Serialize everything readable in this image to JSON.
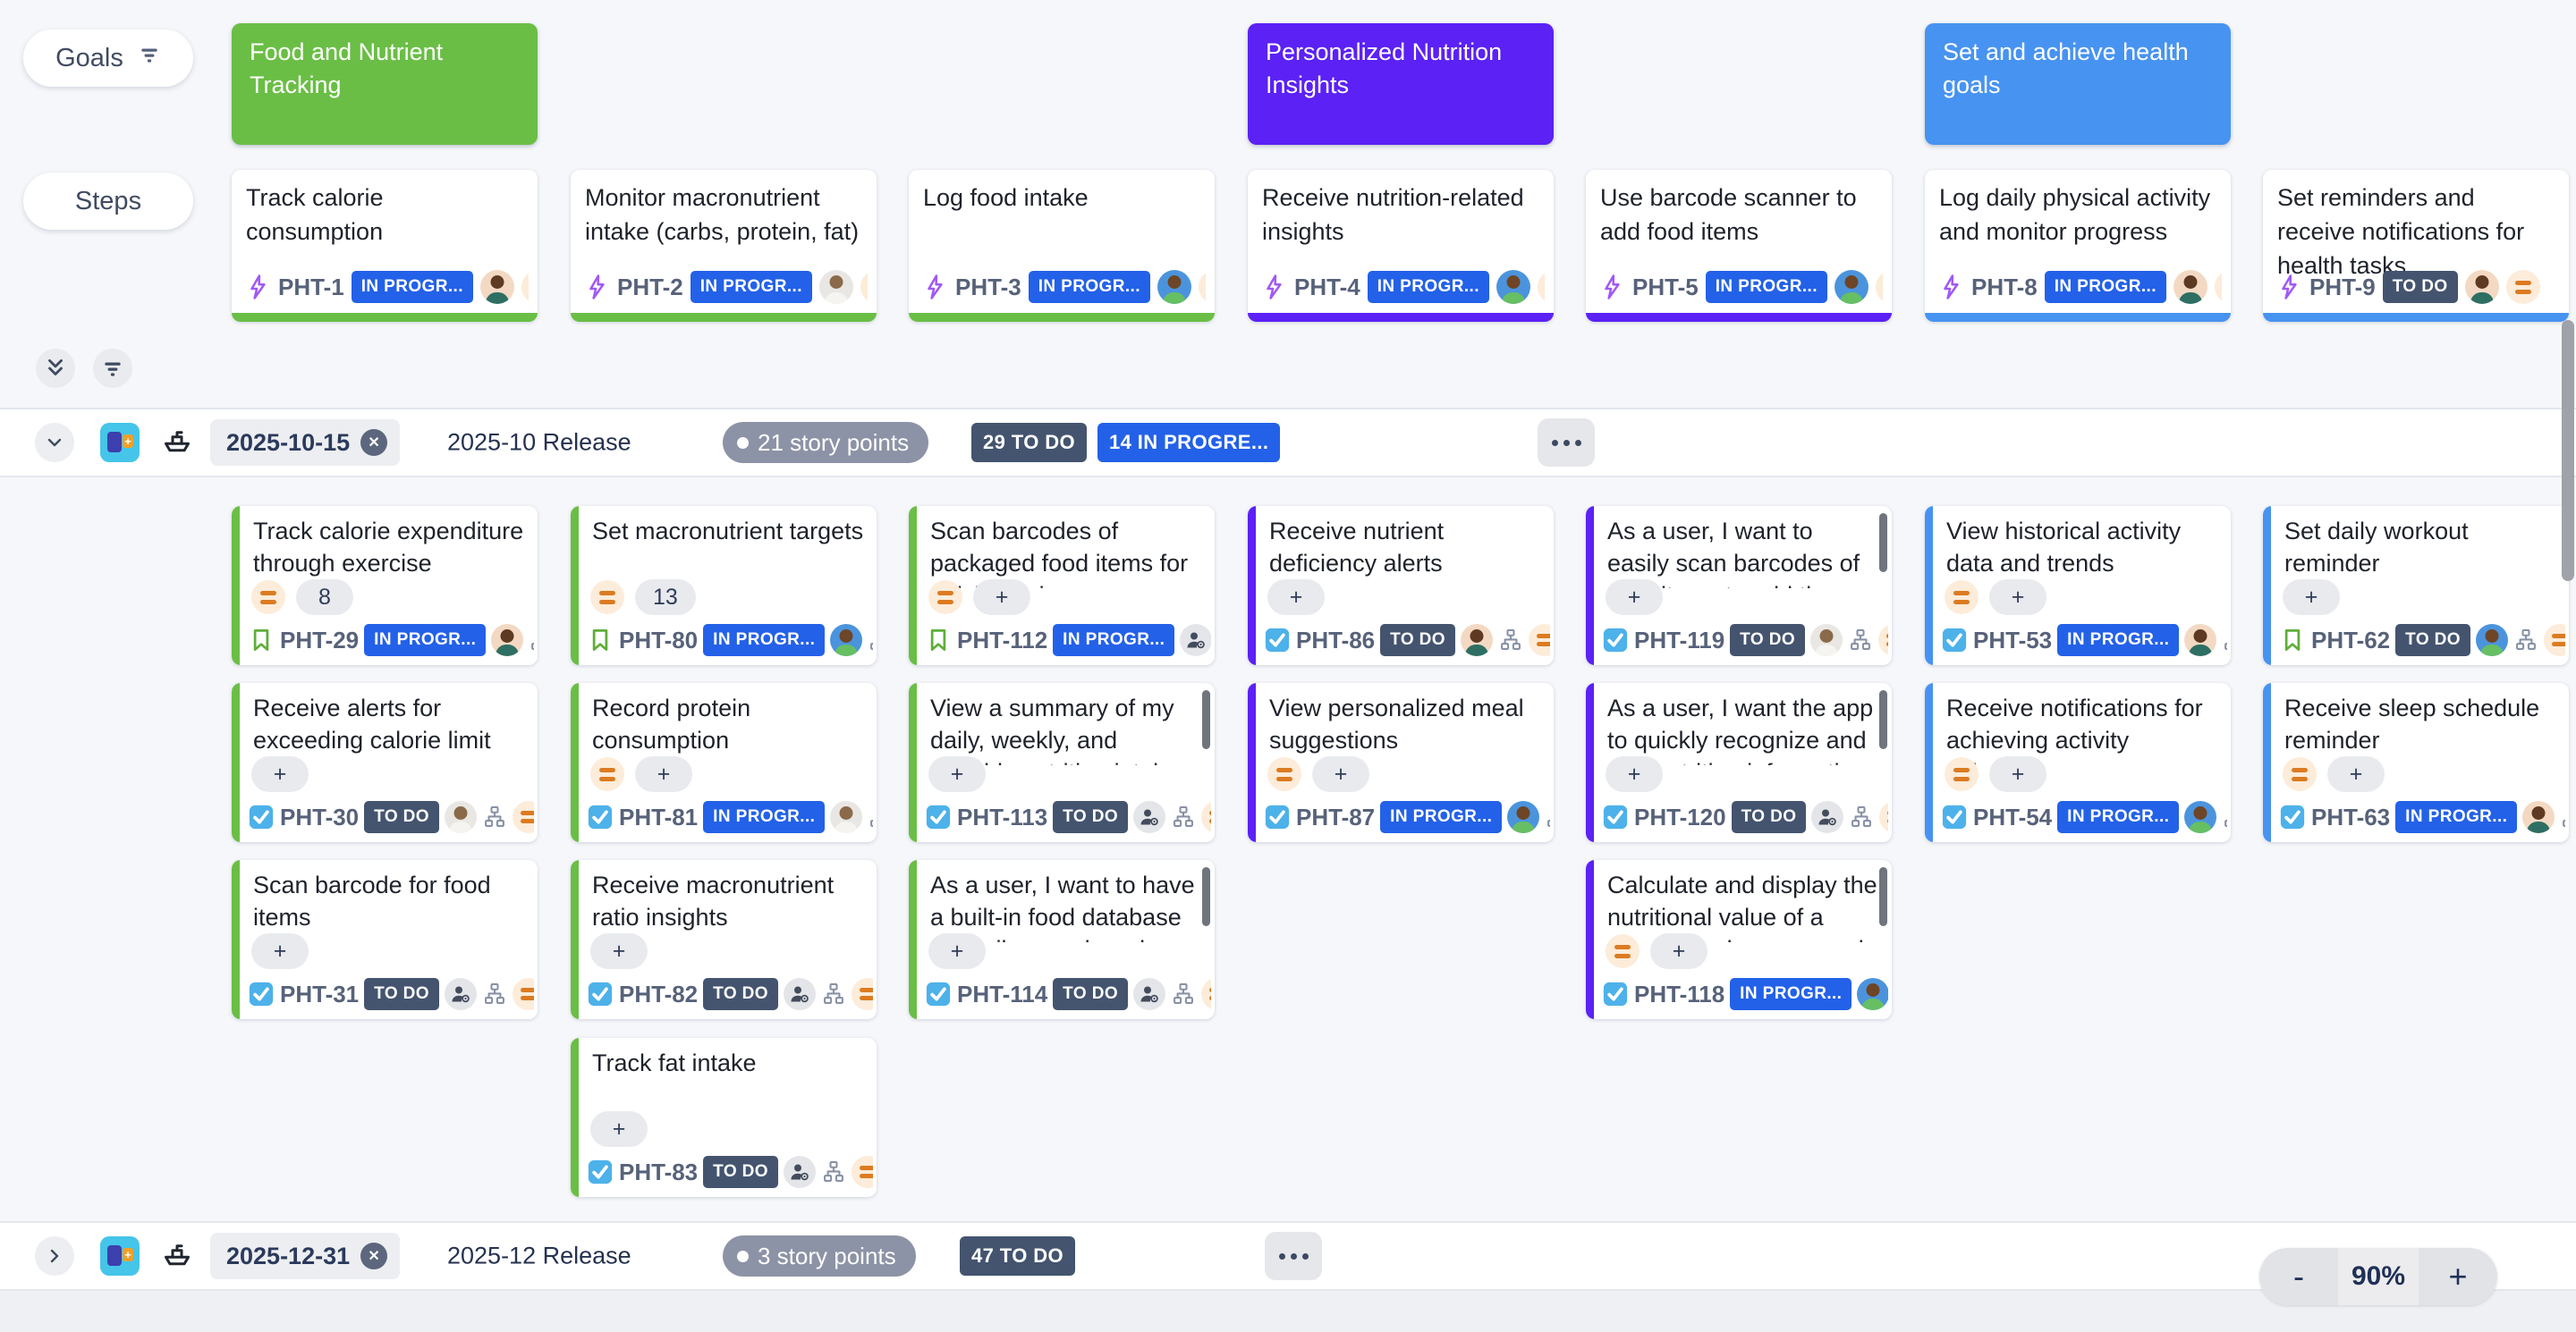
{
  "toolbar": {
    "goals_label": "Goals",
    "steps_label": "Steps"
  },
  "colors": {
    "goal_green": "#6abe45",
    "goal_purple": "#5b21f5",
    "goal_blue": "#4793f1",
    "status_inprogress": "#2361e8",
    "status_todo": "#44546f",
    "points_pill": "#8d93a6",
    "priority_orange": "#dc7b22"
  },
  "goals": [
    {
      "label": "Food and Nutrient Tracking",
      "color": "#6abe45",
      "col": 1
    },
    {
      "label": "Personalized Nutrition Insights",
      "color": "#5b21f5",
      "col": 4
    },
    {
      "label": "Set and achieve health goals",
      "color": "#4793f1",
      "col": 6
    }
  ],
  "steps": [
    {
      "col": 1,
      "key": "PHT-1",
      "title": "Track calorie consumption",
      "status": "IN PROGR...",
      "status_key": "inprogress",
      "accent": "#6abe45",
      "assignee": "tan"
    },
    {
      "col": 2,
      "key": "PHT-2",
      "title": "Monitor macronutrient intake (carbs, protein, fat)",
      "status": "IN PROGR...",
      "status_key": "inprogress",
      "accent": "#6abe45",
      "assignee": "photo"
    },
    {
      "col": 3,
      "key": "PHT-3",
      "title": "Log food intake",
      "status": "IN PROGR...",
      "status_key": "inprogress",
      "accent": "#6abe45",
      "assignee": "blue"
    },
    {
      "col": 4,
      "key": "PHT-4",
      "title": "Receive nutrition-related insights",
      "status": "IN PROGR...",
      "status_key": "inprogress",
      "accent": "#5b21f5",
      "assignee": "blue"
    },
    {
      "col": 5,
      "key": "PHT-5",
      "title": "Use barcode scanner to add food items",
      "status": "IN PROGR...",
      "status_key": "inprogress",
      "accent": "#5b21f5",
      "assignee": "blue"
    },
    {
      "col": 6,
      "key": "PHT-8",
      "title": "Log daily physical activity and monitor progress",
      "status": "IN PROGR...",
      "status_key": "inprogress",
      "accent": "#4793f1",
      "assignee": "tan"
    },
    {
      "col": 7,
      "key": "PHT-9",
      "title": "Set reminders and receive notifications for health tasks",
      "status": "TO DO",
      "status_key": "todo",
      "accent": "#4793f1",
      "assignee": "tan"
    }
  ],
  "releases": [
    {
      "date": "2025-10-15",
      "name": "2025-10 Release",
      "points": "21 story points",
      "badges": [
        {
          "label": "29 TO DO",
          "kind": "todo"
        },
        {
          "label": "14 IN PROGRE...",
          "kind": "inprogress"
        }
      ],
      "cards": [
        {
          "col": 1,
          "row": 1,
          "key": "PHT-29",
          "title": "Track calorie expenditure through exercise",
          "type": "story",
          "estimate": "8",
          "priority_in_est": true,
          "priority_trailing": false,
          "status": "IN PROGR...",
          "status_key": "inprogress",
          "assignee": "tan",
          "accent": "#6abe45",
          "scroll": false
        },
        {
          "col": 1,
          "row": 2,
          "key": "PHT-30",
          "title": "Receive alerts for exceeding calorie limit",
          "type": "task",
          "estimate": "+",
          "priority_in_est": false,
          "priority_trailing": true,
          "status": "TO DO",
          "status_key": "todo",
          "assignee": "photo",
          "accent": "#6abe45",
          "scroll": false
        },
        {
          "col": 1,
          "row": 3,
          "key": "PHT-31",
          "title": "Scan barcode for food items",
          "type": "task",
          "estimate": "+",
          "priority_in_est": false,
          "priority_trailing": true,
          "status": "TO DO",
          "status_key": "todo",
          "assignee": "none",
          "accent": "#6abe45",
          "scroll": false
        },
        {
          "col": 2,
          "row": 1,
          "key": "PHT-80",
          "title": "Set macronutrient targets",
          "type": "story",
          "estimate": "13",
          "priority_in_est": true,
          "priority_trailing": false,
          "status": "IN PROGR...",
          "status_key": "inprogress",
          "assignee": "blue",
          "accent": "#6abe45",
          "scroll": false
        },
        {
          "col": 2,
          "row": 2,
          "key": "PHT-81",
          "title": "Record protein consumption",
          "type": "task",
          "estimate": "+",
          "priority_in_est": true,
          "priority_trailing": false,
          "status": "IN PROGR...",
          "status_key": "inprogress",
          "assignee": "photo",
          "accent": "#6abe45",
          "scroll": false
        },
        {
          "col": 2,
          "row": 3,
          "key": "PHT-82",
          "title": "Receive macronutrient ratio insights",
          "type": "task",
          "estimate": "+",
          "priority_in_est": false,
          "priority_trailing": true,
          "status": "TO DO",
          "status_key": "todo",
          "assignee": "none",
          "accent": "#6abe45",
          "scroll": false
        },
        {
          "col": 2,
          "row": 4,
          "key": "PHT-83",
          "title": "Track fat intake",
          "type": "task",
          "estimate": "+",
          "priority_in_est": false,
          "priority_trailing": true,
          "status": "TO DO",
          "status_key": "todo",
          "assignee": "none",
          "accent": "#6abe45",
          "scroll": false
        },
        {
          "col": 3,
          "row": 1,
          "key": "PHT-112",
          "title": "Scan barcodes of packaged food items for quick logging.",
          "type": "story",
          "estimate": "+",
          "priority_in_est": true,
          "priority_trailing": false,
          "status": "IN PROGR...",
          "status_key": "inprogress",
          "assignee": "none",
          "accent": "#6abe45",
          "scroll": false
        },
        {
          "col": 3,
          "row": 2,
          "key": "PHT-113",
          "title": "View a summary of my daily, weekly, and monthly nutrition intake for better",
          "type": "task",
          "estimate": "+",
          "priority_in_est": false,
          "priority_trailing": true,
          "status": "TO DO",
          "status_key": "todo",
          "assignee": "none",
          "accent": "#6abe45",
          "scroll": true
        },
        {
          "col": 3,
          "row": 3,
          "key": "PHT-114",
          "title": "As a user, I want to have a built-in food database to easily search and select the",
          "type": "task",
          "estimate": "+",
          "priority_in_est": false,
          "priority_trailing": true,
          "status": "TO DO",
          "status_key": "todo",
          "assignee": "none",
          "accent": "#6abe45",
          "scroll": true
        },
        {
          "col": 4,
          "row": 1,
          "key": "PHT-86",
          "title": "Receive nutrient deficiency alerts",
          "type": "task",
          "estimate": "+",
          "priority_in_est": false,
          "priority_trailing": true,
          "status": "TO DO",
          "status_key": "todo",
          "assignee": "tan",
          "accent": "#5b21f5",
          "scroll": false
        },
        {
          "col": 4,
          "row": 2,
          "key": "PHT-87",
          "title": "View personalized meal suggestions",
          "type": "task",
          "estimate": "+",
          "priority_in_est": true,
          "priority_trailing": false,
          "status": "IN PROGR...",
          "status_key": "inprogress",
          "assignee": "blue",
          "accent": "#5b21f5",
          "scroll": false
        },
        {
          "col": 5,
          "row": 1,
          "key": "PHT-119",
          "title": "As a user, I want to easily scan barcodes of food items to add them to my nutrition",
          "type": "task",
          "estimate": "+",
          "priority_in_est": false,
          "priority_trailing": true,
          "status": "TO DO",
          "status_key": "todo",
          "assignee": "photo",
          "accent": "#5b21f5",
          "scroll": true
        },
        {
          "col": 5,
          "row": 2,
          "key": "PHT-120",
          "title": "As a user, I want the app to quickly recognize and add nutrition information from",
          "type": "task",
          "estimate": "+",
          "priority_in_est": false,
          "priority_trailing": true,
          "status": "TO DO",
          "status_key": "todo",
          "assignee": "none",
          "accent": "#5b21f5",
          "scroll": true
        },
        {
          "col": 5,
          "row": 3,
          "key": "PHT-118",
          "title": "Calculate and display the nutritional value of a meal based on scanned items",
          "type": "task",
          "estimate": "+",
          "priority_in_est": true,
          "priority_trailing": false,
          "status": "IN PROGR...",
          "status_key": "inprogress",
          "assignee": "blue",
          "accent": "#5b21f5",
          "scroll": true
        },
        {
          "col": 6,
          "row": 1,
          "key": "PHT-53",
          "title": "View historical activity data and trends",
          "type": "task",
          "estimate": "+",
          "priority_in_est": true,
          "priority_trailing": false,
          "status": "IN PROGR...",
          "status_key": "inprogress",
          "assignee": "tan",
          "accent": "#4793f1",
          "scroll": false
        },
        {
          "col": 6,
          "row": 2,
          "key": "PHT-54",
          "title": "Receive notifications for achieving activity milestones",
          "type": "task",
          "estimate": "+",
          "priority_in_est": true,
          "priority_trailing": false,
          "status": "IN PROGR...",
          "status_key": "inprogress",
          "assignee": "blue",
          "accent": "#4793f1",
          "scroll": false
        },
        {
          "col": 7,
          "row": 1,
          "key": "PHT-62",
          "title": "Set daily workout reminder",
          "type": "story",
          "estimate": "+",
          "priority_in_est": false,
          "priority_trailing": true,
          "status": "TO DO",
          "status_key": "todo",
          "assignee": "blue",
          "accent": "#4793f1",
          "scroll": false
        },
        {
          "col": 7,
          "row": 2,
          "key": "PHT-63",
          "title": "Receive sleep schedule reminder",
          "type": "task",
          "estimate": "+",
          "priority_in_est": true,
          "priority_trailing": false,
          "status": "IN PROGR...",
          "status_key": "inprogress",
          "assignee": "tan",
          "accent": "#4793f1",
          "scroll": false
        }
      ]
    },
    {
      "date": "2025-12-31",
      "name": "2025-12 Release",
      "points": "3 story points",
      "badges": [
        {
          "label": "47 TO DO",
          "kind": "todo"
        }
      ],
      "cards": []
    }
  ],
  "zoom": {
    "minus": "-",
    "level": "90%",
    "plus": "+"
  }
}
